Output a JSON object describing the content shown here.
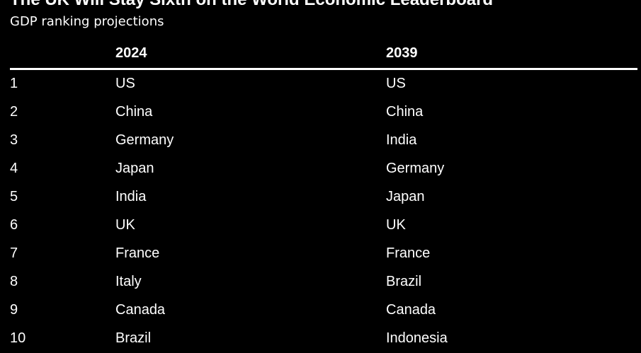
{
  "title": "The UK Will Stay Sixth on the World Economic Leaderboard",
  "subtitle": "GDP ranking projections",
  "chart_data": {
    "type": "table",
    "columns": [
      "",
      "2024",
      "2039"
    ],
    "rows": [
      {
        "rank": "1",
        "y2024": "US",
        "y2039": "US"
      },
      {
        "rank": "2",
        "y2024": "China",
        "y2039": "China"
      },
      {
        "rank": "3",
        "y2024": "Germany",
        "y2039": "India"
      },
      {
        "rank": "4",
        "y2024": "Japan",
        "y2039": "Germany"
      },
      {
        "rank": "5",
        "y2024": "India",
        "y2039": "Japan"
      },
      {
        "rank": "6",
        "y2024": "UK",
        "y2039": "UK"
      },
      {
        "rank": "7",
        "y2024": "France",
        "y2039": "France"
      },
      {
        "rank": "8",
        "y2024": "Italy",
        "y2039": "Brazil"
      },
      {
        "rank": "9",
        "y2024": "Canada",
        "y2039": "Canada"
      },
      {
        "rank": "10",
        "y2024": "Brazil",
        "y2039": "Indonesia"
      }
    ]
  },
  "colors": {
    "background": "#000000",
    "text": "#ffffff"
  }
}
